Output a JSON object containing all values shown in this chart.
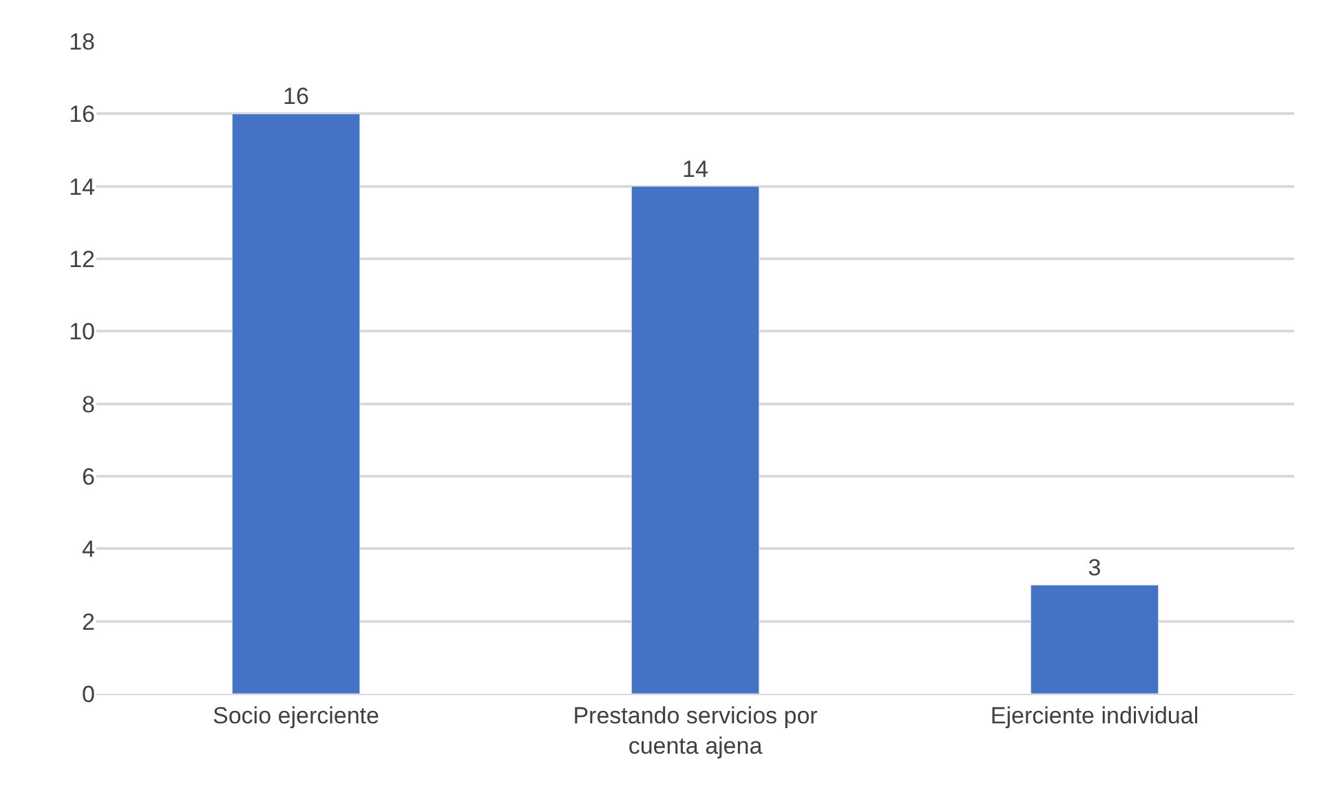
{
  "chart_data": {
    "type": "bar",
    "categories": [
      "Socio ejerciente",
      "Prestando servicios por cuenta ajena",
      "Ejerciente individual"
    ],
    "values": [
      16,
      14,
      3
    ],
    "color": "#4472c4",
    "ylim": [
      0,
      18
    ],
    "yticks": [
      0,
      2,
      4,
      6,
      8,
      10,
      12,
      14,
      16,
      18
    ],
    "grid": "y",
    "data_labels": true,
    "legend": false
  }
}
